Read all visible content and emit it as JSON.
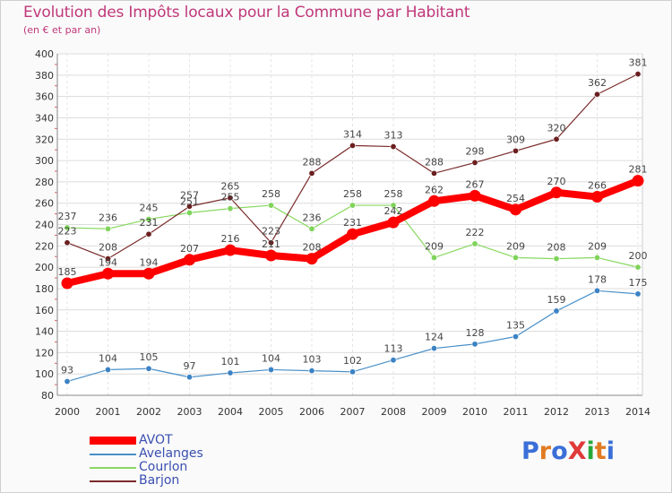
{
  "header": {
    "title": "Evolution des Impôts locaux pour la Commune par Habitant",
    "subtitle": "(en € et par an)"
  },
  "brand": {
    "text": "ProXiti",
    "colors": [
      "#3a6fd8",
      "#e07b22",
      "#3a6fd8",
      "#e03a3a",
      "#27a83a",
      "#e07b22",
      "#3a6fd8"
    ]
  },
  "chart_data": {
    "type": "line",
    "title": "Evolution des Impôts locaux pour la Commune par Habitant",
    "subtitle": "(en € et par an)",
    "xlabel": "",
    "ylabel": "",
    "categories": [
      "2000",
      "2001",
      "2002",
      "2003",
      "2004",
      "2005",
      "2006",
      "2007",
      "2008",
      "2009",
      "2010",
      "2011",
      "2012",
      "2013",
      "2014"
    ],
    "ylim": [
      80,
      400
    ],
    "yticks": [
      80,
      100,
      120,
      140,
      160,
      180,
      200,
      220,
      240,
      260,
      280,
      300,
      320,
      340,
      360,
      380,
      400
    ],
    "grid": true,
    "legend_position": "bottom-left",
    "series": [
      {
        "name": "AVOT",
        "color": "#ff0000",
        "values": [
          185,
          194,
          194,
          207,
          216,
          211,
          208,
          231,
          242,
          262,
          267,
          254,
          270,
          266,
          281
        ]
      },
      {
        "name": "Avelanges",
        "color": "#4a90c8",
        "values": [
          93,
          104,
          105,
          97,
          101,
          104,
          103,
          102,
          113,
          124,
          128,
          135,
          159,
          178,
          175
        ]
      },
      {
        "name": "Courlon",
        "color": "#88d860",
        "values": [
          237,
          236,
          245,
          251,
          255,
          258,
          236,
          258,
          258,
          209,
          222,
          209,
          208,
          209,
          200
        ]
      },
      {
        "name": "Barjon",
        "color": "#7a2a2a",
        "values": [
          223,
          208,
          231,
          257,
          265,
          223,
          288,
          314,
          313,
          288,
          298,
          309,
          320,
          362,
          381
        ]
      }
    ]
  }
}
